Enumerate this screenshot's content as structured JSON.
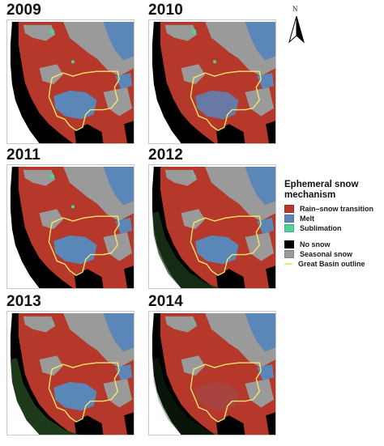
{
  "panels": [
    {
      "year": "2009"
    },
    {
      "year": "2010"
    },
    {
      "year": "2011"
    },
    {
      "year": "2012"
    },
    {
      "year": "2013"
    },
    {
      "year": "2014"
    }
  ],
  "north_arrow": {
    "label": "N"
  },
  "legend": {
    "title_line1": "Ephemeral snow",
    "title_line2": "mechanism",
    "items_primary": [
      {
        "label": "Rain–snow transition",
        "color": "#b5382b"
      },
      {
        "label": "Melt",
        "color": "#5b86b8"
      },
      {
        "label": "Sublimation",
        "color": "#4fd39a"
      }
    ],
    "items_secondary": [
      {
        "label": "No snow",
        "color": "#000000"
      },
      {
        "label": "Seasonal snow",
        "color": "#9a9a9a"
      },
      {
        "label": "Great Basin outline",
        "color": "#f2e66b"
      }
    ]
  },
  "colors": {
    "rain_snow": "#b5382b",
    "melt": "#5b86b8",
    "sublimation": "#4fd39a",
    "no_snow": "#000000",
    "seasonal": "#9a9a9a",
    "basin_outline": "#f2e66b",
    "dark_green": "#1d3a1a"
  }
}
